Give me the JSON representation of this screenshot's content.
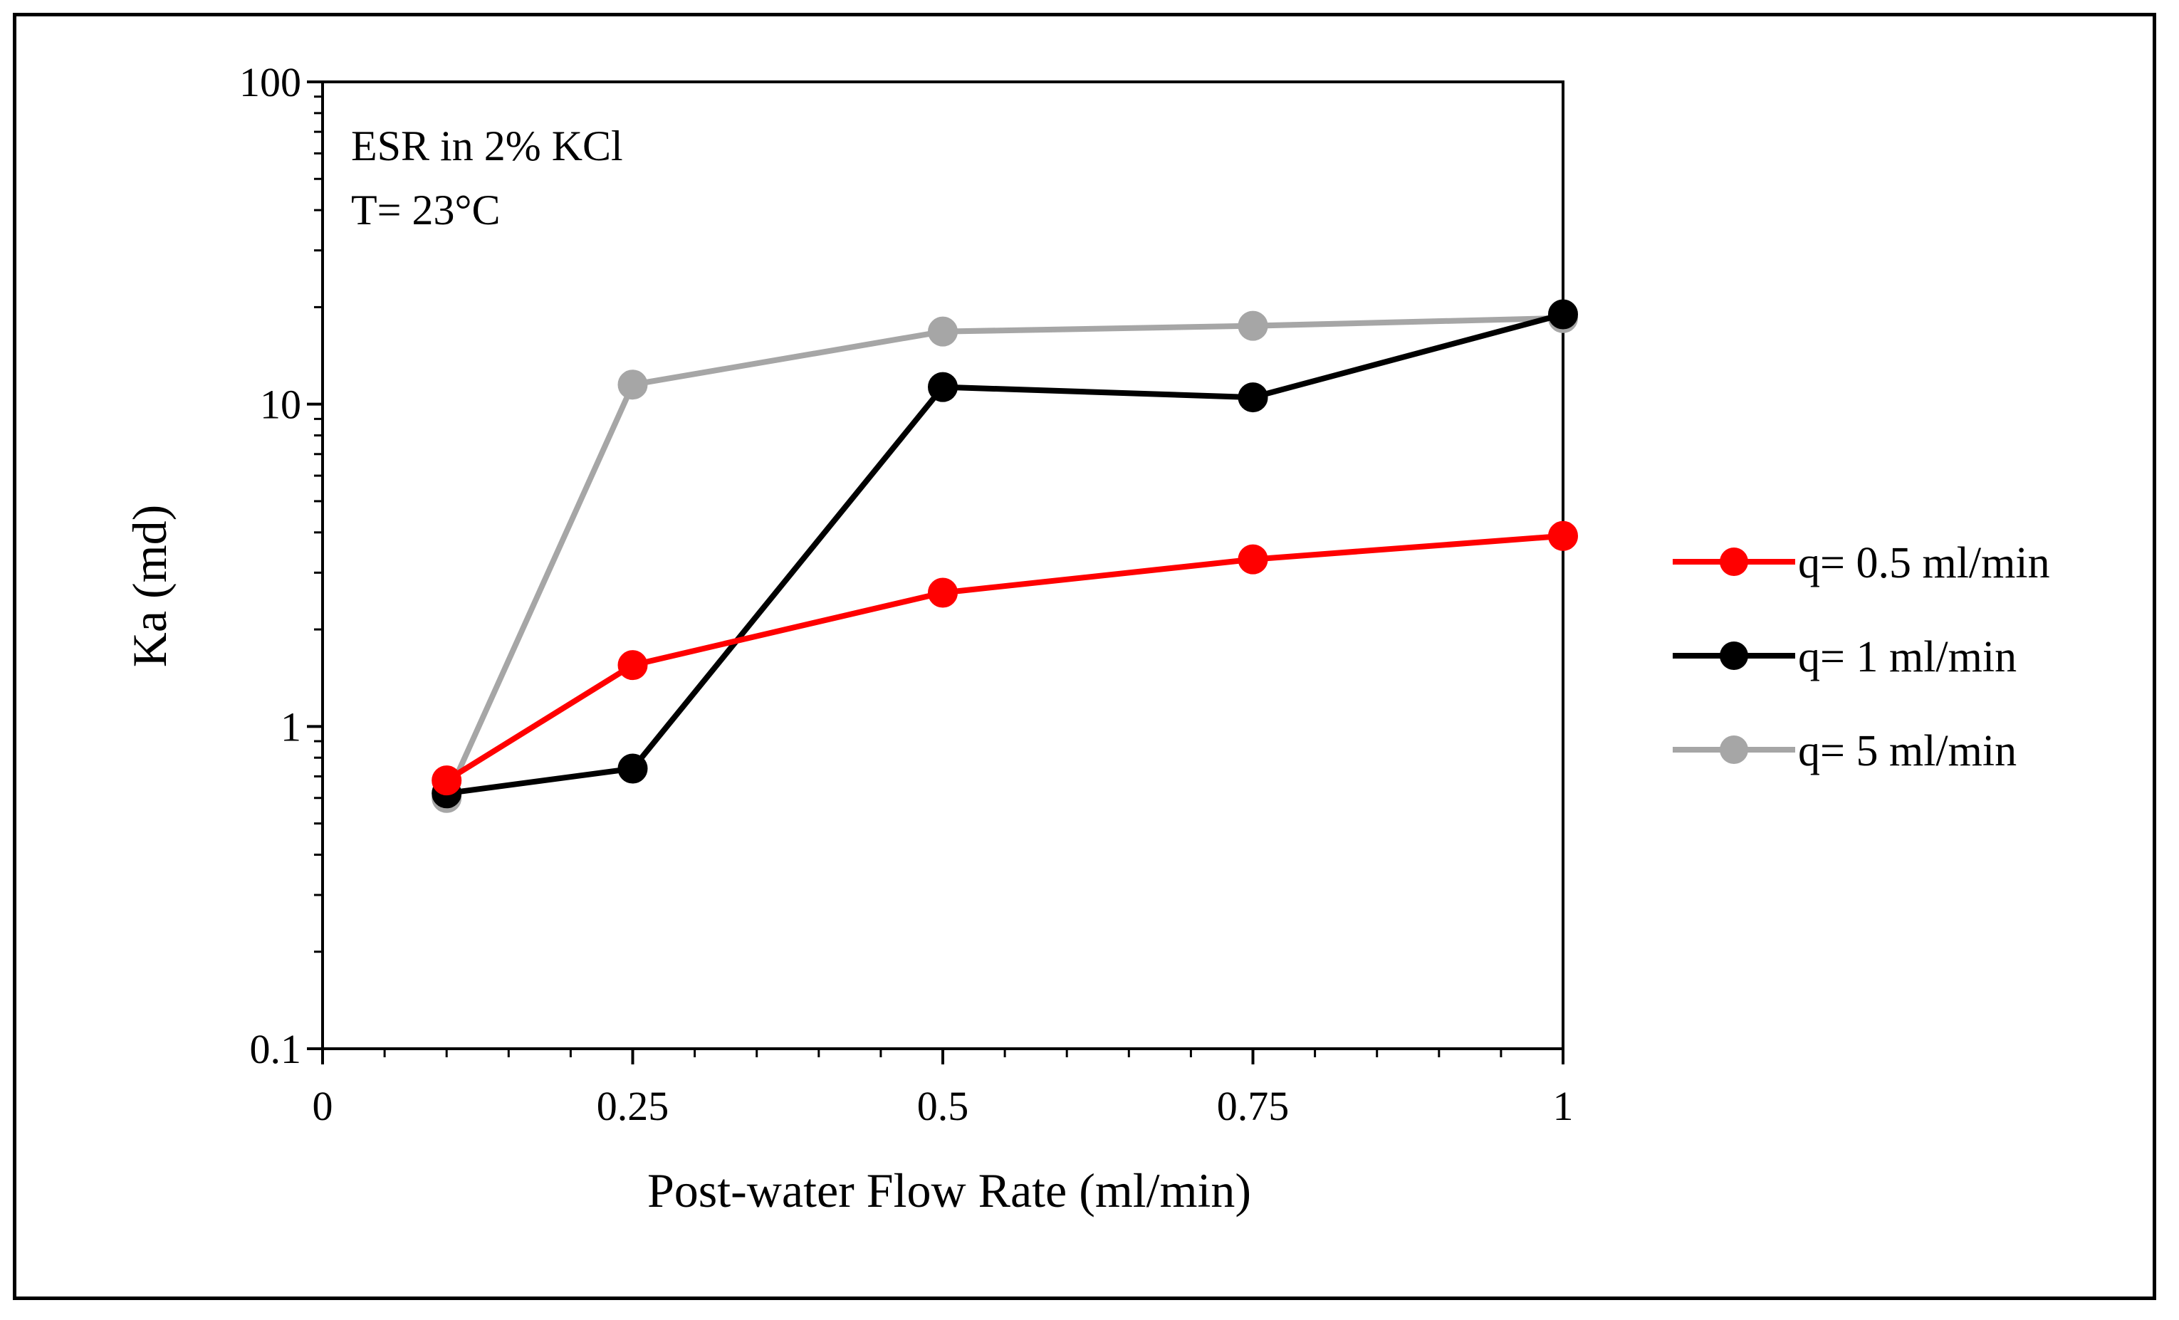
{
  "chart_data": {
    "type": "line",
    "title": "",
    "xlabel": "Post-water Flow Rate (ml/min)",
    "ylabel": "Ka (md)",
    "xlim": [
      0,
      1
    ],
    "ylim": [
      0.1,
      100
    ],
    "yscale": "log",
    "grid": false,
    "legend_position": "right",
    "x_ticks": [
      0,
      0.25,
      0.5,
      0.75,
      1
    ],
    "x_tick_labels": [
      "0",
      "0.25",
      "0.5",
      "0.75",
      "1"
    ],
    "y_ticks": [
      0.1,
      1,
      10,
      100
    ],
    "y_tick_labels": [
      "0.1",
      "1",
      "10",
      "100"
    ],
    "annotations": [
      "ESR in 2% KCl",
      "T= 23°C"
    ],
    "x": [
      0.1,
      0.25,
      0.5,
      0.75,
      1
    ],
    "series": [
      {
        "name": "q= 0.5 ml/min",
        "color": "#ff0000",
        "values": [
          0.68,
          1.55,
          2.6,
          3.3,
          3.9
        ]
      },
      {
        "name": "q= 1 ml/min",
        "color": "#000000",
        "values": [
          0.62,
          0.74,
          11.3,
          10.5,
          19.0
        ]
      },
      {
        "name": "q= 5 ml/min",
        "color": "#a6a6a6",
        "values": [
          0.6,
          11.5,
          16.8,
          17.5,
          18.5
        ]
      }
    ]
  }
}
